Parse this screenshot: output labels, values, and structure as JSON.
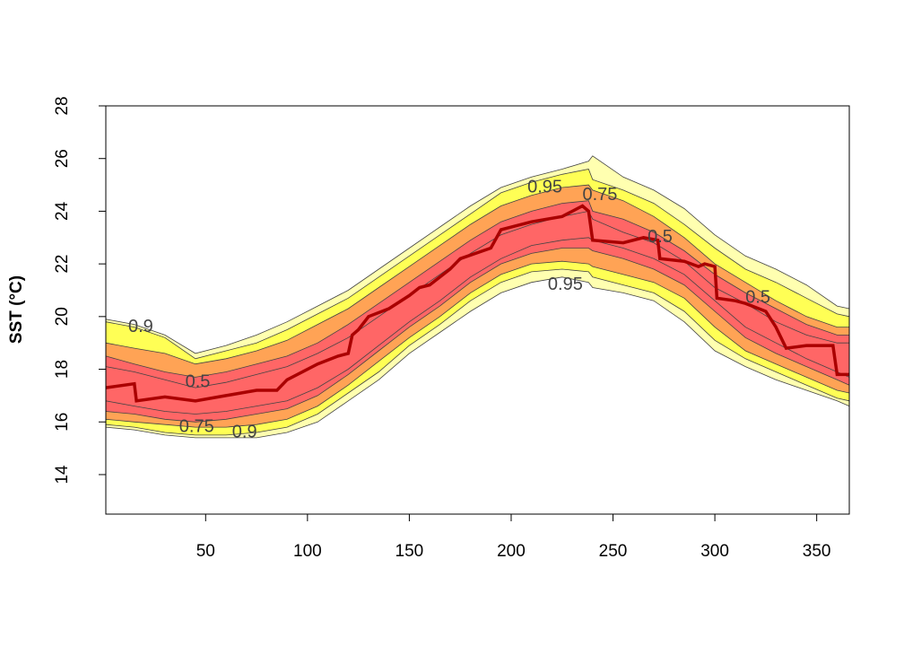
{
  "chart_data": {
    "type": "area",
    "title": "",
    "xlabel": "",
    "ylabel": "SST (°C)",
    "xlim": [
      1,
      366
    ],
    "ylim": [
      12.5,
      28
    ],
    "x_ticks": [
      50,
      100,
      150,
      200,
      250,
      300,
      350
    ],
    "y_ticks": [
      14,
      16,
      18,
      20,
      22,
      24,
      26,
      28
    ],
    "grid": false,
    "colors": {
      "outer_band": "#ffffb0",
      "band_95": "#ffff55",
      "band_90": "#ffa355",
      "band_75": "#ff6666",
      "median_line": "#aa0000"
    },
    "x": [
      1,
      15,
      30,
      45,
      60,
      75,
      90,
      105,
      120,
      135,
      150,
      165,
      180,
      195,
      210,
      225,
      238,
      240,
      255,
      270,
      285,
      300,
      315,
      330,
      345,
      360,
      366
    ],
    "bands": [
      {
        "name": "outer",
        "upper": [
          19.9,
          19.7,
          19.3,
          18.6,
          18.9,
          19.3,
          19.8,
          20.4,
          21.0,
          21.8,
          22.6,
          23.4,
          24.2,
          24.9,
          25.3,
          25.6,
          25.9,
          26.1,
          25.3,
          24.8,
          24.1,
          23.1,
          22.3,
          21.8,
          21.2,
          20.4,
          20.3
        ],
        "lower": [
          15.8,
          15.7,
          15.5,
          15.4,
          15.4,
          15.4,
          15.6,
          16.0,
          16.8,
          17.6,
          18.6,
          19.4,
          20.2,
          20.9,
          21.3,
          21.5,
          21.3,
          21.1,
          20.9,
          20.6,
          19.8,
          18.7,
          18.1,
          17.6,
          17.2,
          16.8,
          16.6
        ]
      },
      {
        "name": "0.95",
        "upper": [
          19.8,
          19.6,
          19.2,
          18.4,
          18.7,
          19.0,
          19.5,
          20.1,
          20.7,
          21.5,
          22.3,
          23.1,
          23.9,
          24.7,
          25.1,
          25.4,
          25.6,
          25.2,
          24.8,
          24.3,
          23.5,
          22.6,
          21.8,
          21.3,
          20.7,
          20.1,
          20.0
        ],
        "lower": [
          15.9,
          15.8,
          15.6,
          15.5,
          15.5,
          15.6,
          15.8,
          16.3,
          17.1,
          17.9,
          18.9,
          19.7,
          20.6,
          21.3,
          21.7,
          21.8,
          21.7,
          21.5,
          21.2,
          20.9,
          20.2,
          19.1,
          18.4,
          17.9,
          17.4,
          16.9,
          16.8
        ]
      },
      {
        "name": "0.9",
        "upper": [
          19.0,
          18.8,
          18.6,
          18.2,
          18.4,
          18.7,
          19.1,
          19.7,
          20.3,
          21.1,
          21.9,
          22.7,
          23.5,
          24.2,
          24.6,
          24.9,
          25.0,
          24.8,
          24.4,
          23.8,
          23.0,
          22.0,
          21.3,
          20.6,
          20.0,
          19.6,
          19.6
        ],
        "lower": [
          16.1,
          16.0,
          15.9,
          15.8,
          15.8,
          15.9,
          16.1,
          16.6,
          17.4,
          18.3,
          19.2,
          20.0,
          20.9,
          21.6,
          22.0,
          22.1,
          22.0,
          21.9,
          21.6,
          21.3,
          20.7,
          19.6,
          18.7,
          18.2,
          17.7,
          17.2,
          17.1
        ]
      },
      {
        "name": "0.75",
        "upper": [
          18.5,
          18.2,
          17.9,
          17.7,
          17.9,
          18.2,
          18.5,
          19.0,
          19.7,
          20.5,
          21.3,
          22.1,
          22.9,
          23.6,
          24.0,
          24.3,
          24.4,
          24.0,
          23.7,
          23.2,
          22.5,
          21.6,
          20.9,
          20.3,
          19.7,
          19.3,
          19.3
        ],
        "lower": [
          16.4,
          16.3,
          16.1,
          16.0,
          16.1,
          16.3,
          16.5,
          17.0,
          17.8,
          18.7,
          19.6,
          20.4,
          21.3,
          22.0,
          22.4,
          22.6,
          22.6,
          22.5,
          22.2,
          21.8,
          21.2,
          20.2,
          19.2,
          18.6,
          18.1,
          17.6,
          17.4
        ]
      },
      {
        "name": "0.5",
        "upper": [
          18.1,
          17.9,
          17.6,
          17.3,
          17.5,
          17.8,
          18.1,
          18.6,
          19.2,
          20.0,
          20.8,
          21.6,
          22.4,
          23.1,
          23.5,
          23.8,
          24.0,
          23.7,
          23.2,
          22.8,
          22.1,
          21.1,
          20.5,
          19.8,
          19.3,
          19.0,
          19.0
        ],
        "lower": [
          16.8,
          16.6,
          16.4,
          16.3,
          16.4,
          16.6,
          16.8,
          17.3,
          18.0,
          18.9,
          19.8,
          20.6,
          21.5,
          22.2,
          22.7,
          22.9,
          23.0,
          22.9,
          22.6,
          22.2,
          21.6,
          20.6,
          19.6,
          19.0,
          18.4,
          17.9,
          17.7
        ]
      }
    ],
    "median": {
      "x": [
        1,
        15,
        16,
        30,
        45,
        60,
        75,
        85,
        90,
        105,
        115,
        120,
        122,
        125,
        130,
        140,
        150,
        155,
        160,
        170,
        175,
        190,
        195,
        210,
        225,
        235,
        238,
        240,
        255,
        265,
        272,
        273,
        285,
        292,
        295,
        300,
        301,
        310,
        315,
        325,
        330,
        335,
        345,
        358,
        360,
        366
      ],
      "y": [
        17.3,
        17.45,
        16.8,
        16.95,
        16.8,
        17.0,
        17.2,
        17.2,
        17.6,
        18.2,
        18.5,
        18.6,
        19.3,
        19.5,
        20.0,
        20.3,
        20.8,
        21.1,
        21.2,
        21.8,
        22.2,
        22.6,
        23.3,
        23.6,
        23.8,
        24.2,
        24.0,
        22.9,
        22.8,
        23.0,
        22.9,
        22.2,
        22.1,
        21.9,
        22.0,
        21.9,
        20.7,
        20.6,
        20.5,
        20.2,
        19.6,
        18.8,
        18.9,
        18.9,
        17.8,
        17.8
      ]
    },
    "annotations": [
      {
        "text": "0.9",
        "x": 12,
        "y": 19.6
      },
      {
        "text": "0.5",
        "x": 40,
        "y": 17.5
      },
      {
        "text": "0.75",
        "x": 37,
        "y": 15.8
      },
      {
        "text": "0.9",
        "x": 63,
        "y": 15.6
      },
      {
        "text": "0.95",
        "x": 208,
        "y": 24.9
      },
      {
        "text": "0.75",
        "x": 235,
        "y": 24.6
      },
      {
        "text": "0.5",
        "x": 267,
        "y": 23.0
      },
      {
        "text": "0.95",
        "x": 218,
        "y": 21.2
      },
      {
        "text": "0.5",
        "x": 315,
        "y": 20.7
      }
    ]
  }
}
